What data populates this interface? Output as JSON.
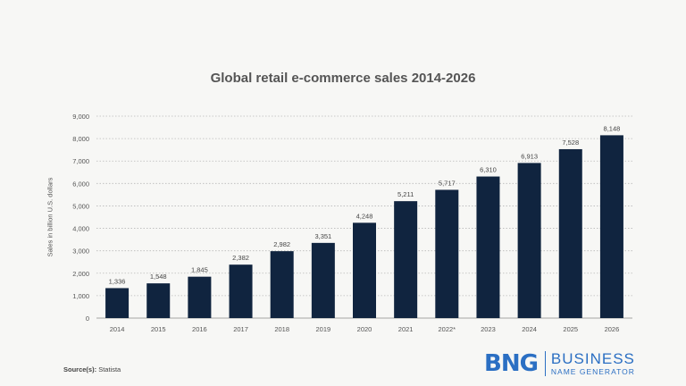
{
  "chart_data": {
    "type": "bar",
    "title": "Global retail e-commerce sales 2014-2026",
    "ylabel": "Sales in billion U.S. dollars",
    "xlabel": "",
    "categories": [
      "2014",
      "2015",
      "2016",
      "2017",
      "2018",
      "2019",
      "2020",
      "2021",
      "2022*",
      "2023",
      "2024",
      "2025",
      "2026"
    ],
    "values": [
      1336,
      1548,
      1845,
      2382,
      2982,
      3351,
      4248,
      5211,
      5717,
      6310,
      6913,
      7528,
      8148
    ],
    "value_labels": [
      "1,336",
      "1,548",
      "1,845",
      "2,382",
      "2,982",
      "3,351",
      "4,248",
      "5,211",
      "5,717",
      "6,310",
      "6,913",
      "7,528",
      "8,148"
    ],
    "ylim": [
      0,
      9000
    ],
    "yticks": [
      0,
      1000,
      2000,
      3000,
      4000,
      5000,
      6000,
      7000,
      8000,
      9000
    ],
    "ytick_labels": [
      "0",
      "1,000",
      "2,000",
      "3,000",
      "4,000",
      "5,000",
      "6,000",
      "7,000",
      "8,000",
      "9,000"
    ],
    "grid": true,
    "bar_color": "#10243f"
  },
  "source": {
    "label": "Source(s):",
    "text": "Statista"
  },
  "brand": {
    "mark": "BNG",
    "line1": "BUSINESS",
    "line2": "NAME GENERATOR",
    "color": "#2b6fc3"
  }
}
